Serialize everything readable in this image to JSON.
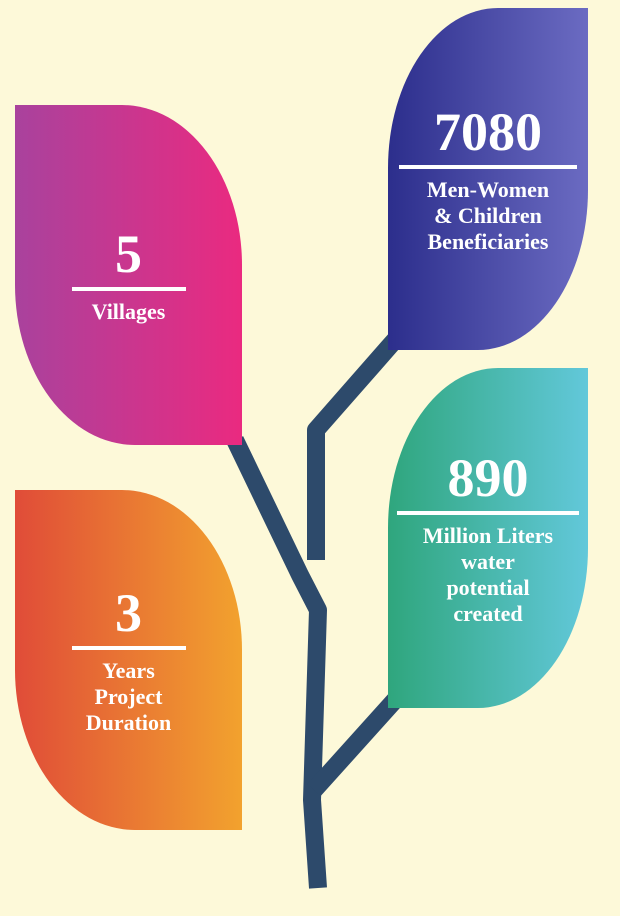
{
  "leaves": [
    {
      "value": "5",
      "label": [
        "Villages"
      ]
    },
    {
      "value": "7080",
      "label": [
        "Men-Women",
        "& Children",
        "Beneficiaries"
      ]
    },
    {
      "value": "890",
      "label": [
        "Million Liters",
        "water",
        "potential",
        "created"
      ]
    },
    {
      "value": "3",
      "label": [
        "Years",
        "Project",
        "Duration"
      ]
    }
  ]
}
